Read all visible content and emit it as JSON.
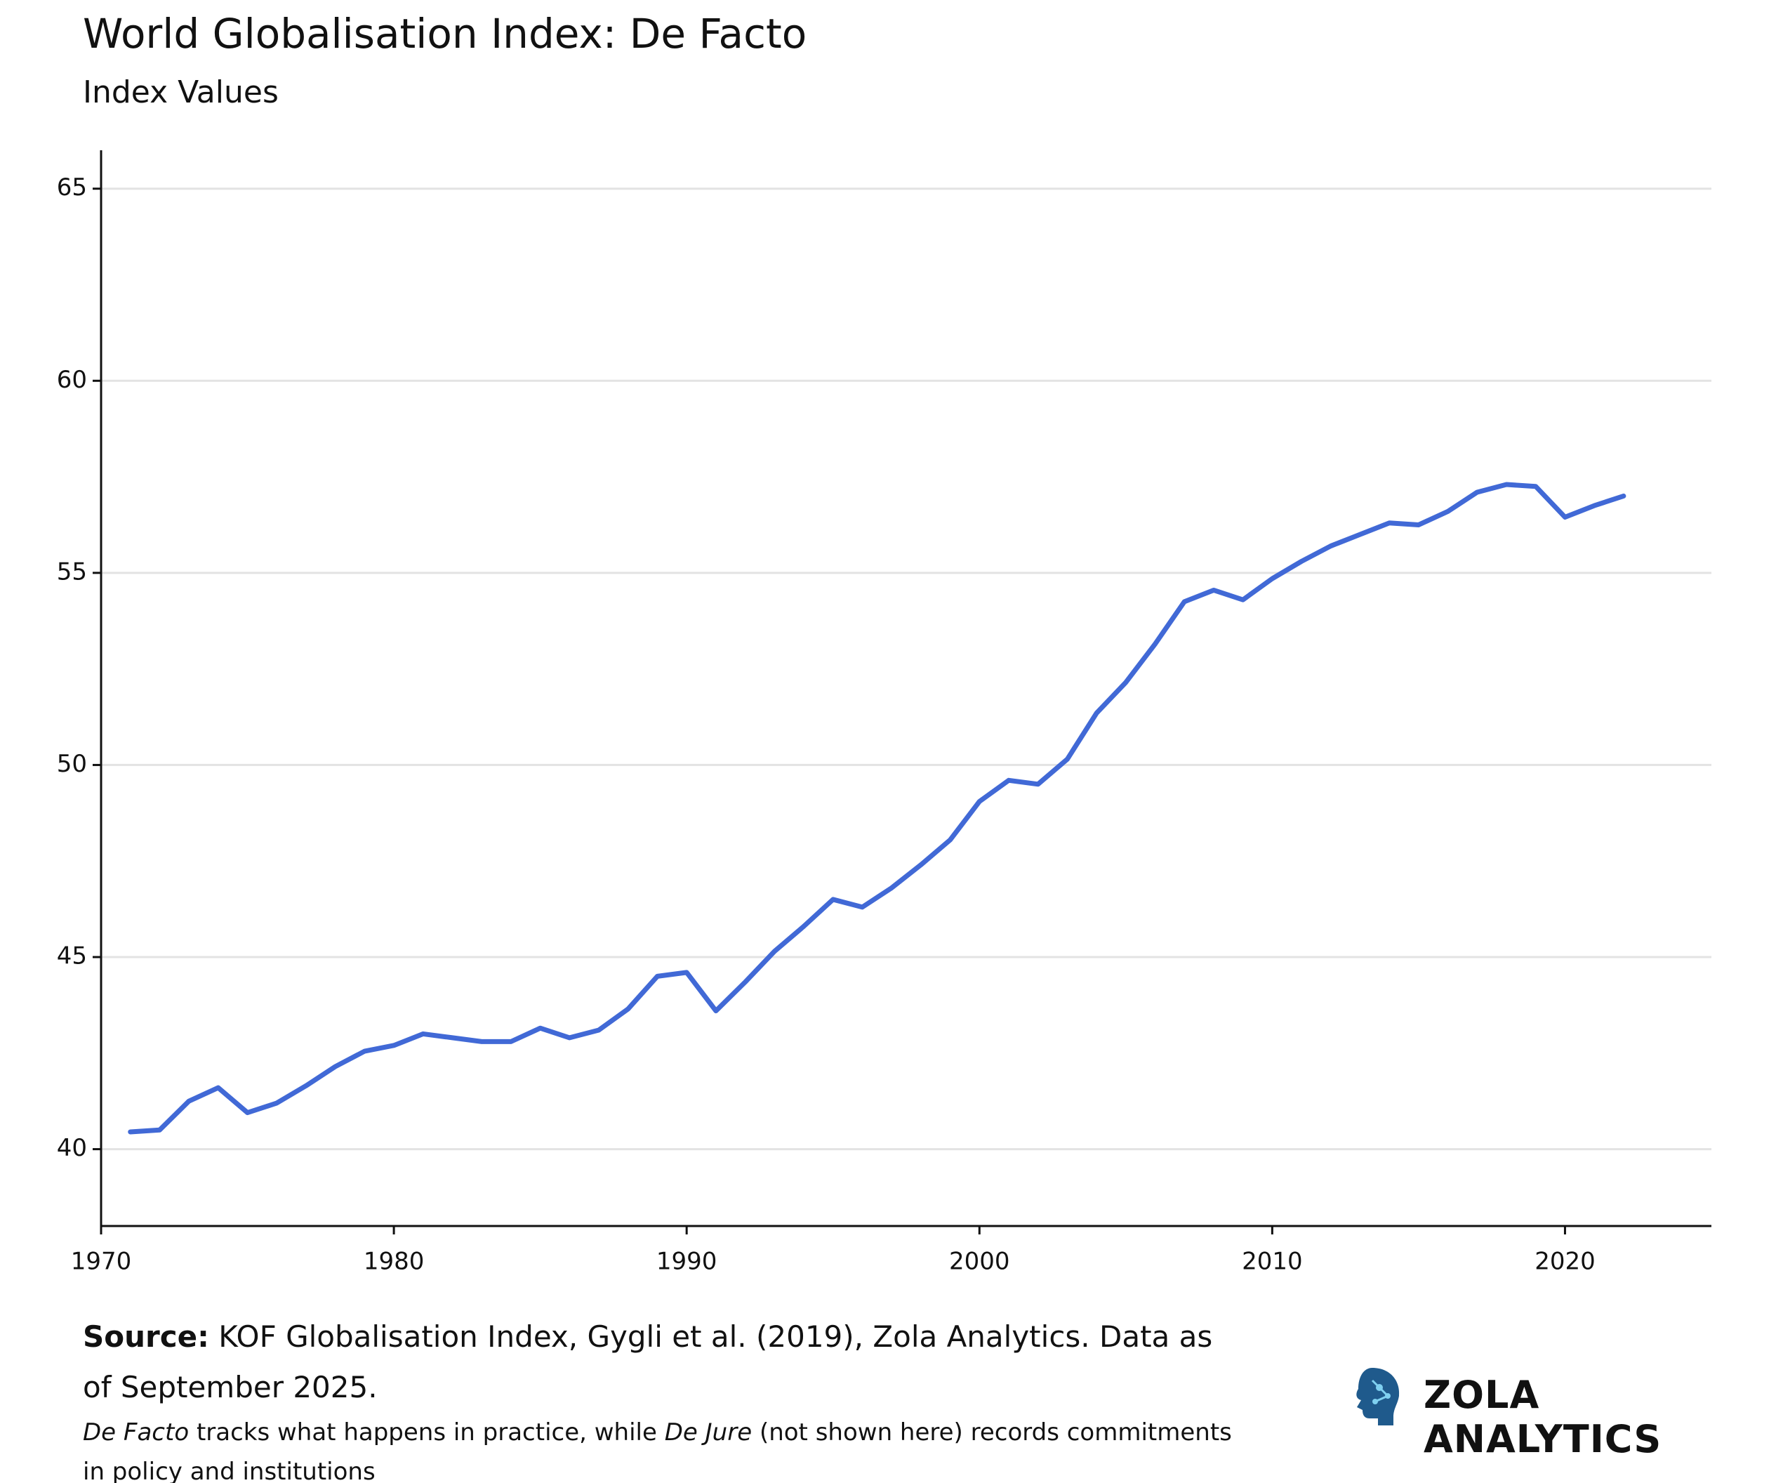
{
  "chart_data": {
    "type": "line",
    "title": "World Globalisation Index: De Facto",
    "subtitle": "Index Values",
    "x": [
      1971,
      1972,
      1973,
      1974,
      1975,
      1976,
      1977,
      1978,
      1979,
      1980,
      1981,
      1982,
      1983,
      1984,
      1985,
      1986,
      1987,
      1988,
      1989,
      1990,
      1991,
      1992,
      1993,
      1994,
      1995,
      1996,
      1997,
      1998,
      1999,
      2000,
      2001,
      2002,
      2003,
      2004,
      2005,
      2006,
      2007,
      2008,
      2009,
      2010,
      2011,
      2012,
      2013,
      2014,
      2015,
      2016,
      2017,
      2018,
      2019,
      2020,
      2021,
      2022
    ],
    "values": [
      40.45,
      40.5,
      41.25,
      41.6,
      40.95,
      41.2,
      41.65,
      42.15,
      42.55,
      42.7,
      43.0,
      42.9,
      42.8,
      42.8,
      43.15,
      42.9,
      43.1,
      43.65,
      44.5,
      44.6,
      43.6,
      44.35,
      45.15,
      45.8,
      46.5,
      46.3,
      46.8,
      47.4,
      48.05,
      49.05,
      49.6,
      49.5,
      50.15,
      51.35,
      52.15,
      53.15,
      54.25,
      54.55,
      54.3,
      54.85,
      55.3,
      55.7,
      56.0,
      56.3,
      56.25,
      56.6,
      57.1,
      57.3,
      57.25,
      56.45,
      56.75,
      57.0
    ],
    "color": "#4169d6",
    "xlim": [
      1970,
      2025
    ],
    "xticks": [
      1970,
      1980,
      1990,
      2000,
      2010,
      2020
    ],
    "ylim": [
      38,
      66
    ],
    "yticks": [
      40,
      45,
      50,
      55,
      60,
      65
    ],
    "grid": true,
    "source_label": "Source:",
    "source": "KOF Globalisation Index, Gygli et al. (2019), Zola Analytics. Data as of September 2025.",
    "note": [
      "De Facto",
      "tracks what happens in practice, while",
      "De Jure",
      "(not shown here) records commitments in policy and institutions"
    ],
    "brand": "ZOLA ANALYTICS"
  }
}
